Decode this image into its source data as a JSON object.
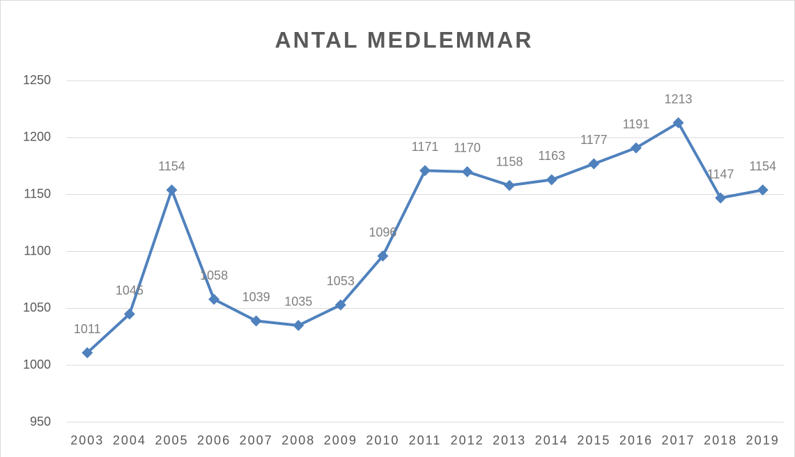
{
  "chart_data": {
    "type": "line",
    "title": "ANTAL MEDLEMMAR",
    "categories": [
      "2003",
      "2004",
      "2005",
      "2006",
      "2007",
      "2008",
      "2009",
      "2010",
      "2011",
      "2012",
      "2013",
      "2014",
      "2015",
      "2016",
      "2017",
      "2018",
      "2019"
    ],
    "series": [
      {
        "name": "Antal medlemmar",
        "color": "#4f81bd",
        "values": [
          1011,
          1045,
          1154,
          1058,
          1039,
          1035,
          1053,
          1096,
          1171,
          1170,
          1158,
          1163,
          1177,
          1191,
          1213,
          1147,
          1154
        ]
      }
    ],
    "ylim": [
      950,
      1250
    ],
    "yticks": [
      950,
      1000,
      1050,
      1100,
      1150,
      1200,
      1250
    ],
    "grid": true,
    "data_labels": true
  }
}
